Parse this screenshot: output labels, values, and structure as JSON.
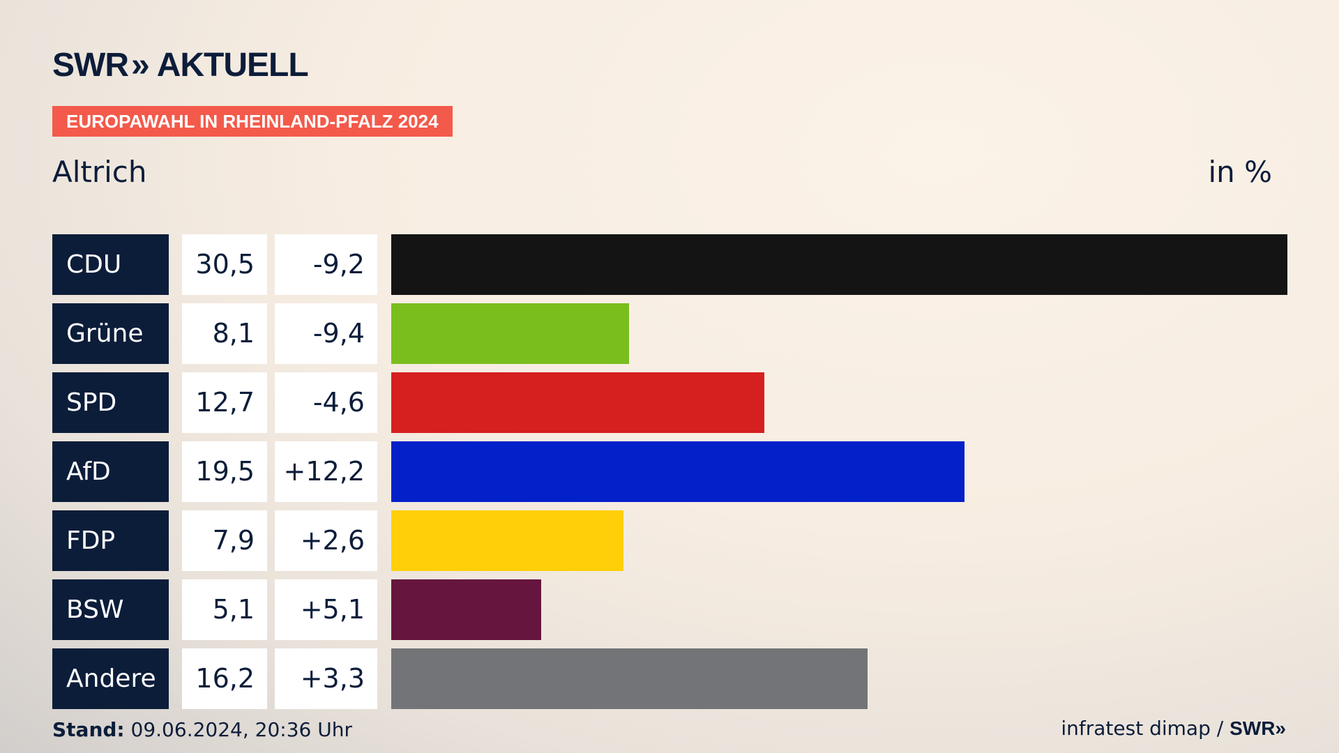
{
  "header": {
    "logo_brand": "SWR",
    "logo_chevrons": "»",
    "logo_word": "AKTUELL",
    "badge": "EUROPAWAHL IN RHEINLAND-PFALZ 2024",
    "badge_color": "#f35a4b"
  },
  "footer": {
    "stand_label": "Stand:",
    "stand_value": "09.06.2024, 20:36 Uhr",
    "source": "infratest dimap /",
    "source_brand": "SWR»"
  },
  "chart_data": {
    "type": "bar",
    "orientation": "horizontal",
    "title": "Altrich",
    "unit_label": "in %",
    "categories": [
      "CDU",
      "Grüne",
      "SPD",
      "AfD",
      "FDP",
      "BSW",
      "Andere"
    ],
    "values": [
      30.5,
      8.1,
      12.7,
      19.5,
      7.9,
      5.1,
      16.2
    ],
    "value_labels": [
      "30,5",
      "8,1",
      "12,7",
      "19,5",
      "7,9",
      "5,1",
      "16,2"
    ],
    "diff_labels": [
      "-9,2",
      "-9,4",
      "-4,6",
      "+12,2",
      "+2,6",
      "+5,1",
      "+3,3"
    ],
    "colors": [
      "#141414",
      "#7abe1e",
      "#d61f1f",
      "#0320c9",
      "#ffcf0a",
      "#66163e",
      "#737477"
    ],
    "xlim": [
      0,
      30.5
    ],
    "grid": false,
    "legend": "none"
  }
}
